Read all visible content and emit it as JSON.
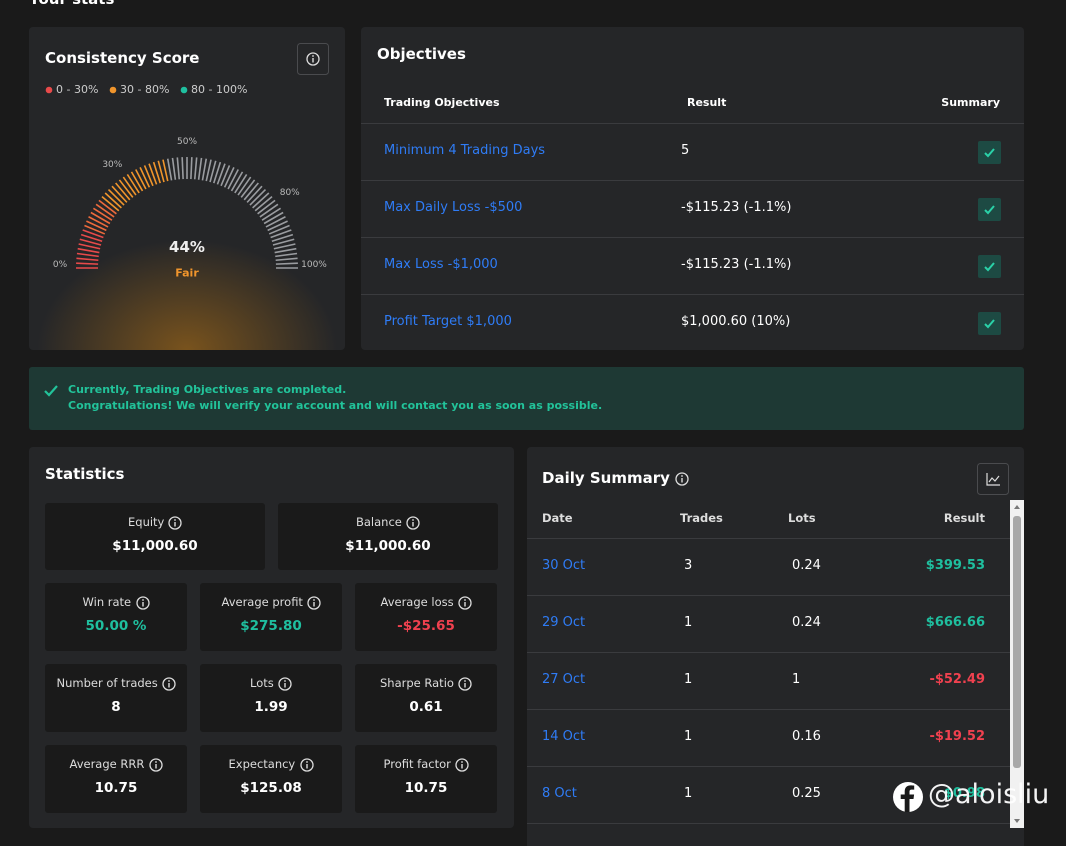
{
  "header": {
    "title": "Your stats"
  },
  "consistency": {
    "title": "Consistency Score",
    "legend": [
      {
        "label": "0 - 30%",
        "color": "#e84a4a"
      },
      {
        "label": "30 - 80%",
        "color": "#f0952c"
      },
      {
        "label": "80 - 100%",
        "color": "#1fbf9f"
      }
    ],
    "gauge_ticks": [
      {
        "value": 0,
        "label": "0%"
      },
      {
        "value": 30,
        "label": "30%"
      },
      {
        "value": 50,
        "label": "50%"
      },
      {
        "value": 80,
        "label": "80%"
      },
      {
        "value": 100,
        "label": "100%"
      }
    ],
    "score": {
      "value": 44,
      "label": "44%"
    },
    "rating": "Fair"
  },
  "objectives": {
    "title": "Objectives",
    "headers": [
      "Trading Objectives",
      "Result",
      "Summary"
    ],
    "rows": [
      [
        "Minimum 4 Trading Days",
        "5"
      ],
      [
        "Max Daily Loss -$500",
        "-$115.23 (-1.1%)"
      ],
      [
        "Max Loss -$1,000",
        "-$115.23 (-1.1%)"
      ],
      [
        "Profit Target $1,000",
        "$1,000.60 (10%)"
      ]
    ]
  },
  "banner": {
    "lines": [
      "Currently, Trading Objectives are completed.",
      "Congratulations! We will verify your account and will contact you as soon as possible."
    ]
  },
  "statistics": {
    "title": "Statistics",
    "items": [
      {
        "label": "Equity",
        "value": "$11,000.60",
        "color": "#ffffff"
      },
      {
        "label": "Balance",
        "value": "$11,000.60",
        "color": "#ffffff"
      },
      {
        "label": "Win rate",
        "value": "50.00 %",
        "color": "#1fbf9f"
      },
      {
        "label": "Average profit",
        "value": "$275.80",
        "color": "#1fbf9f"
      },
      {
        "label": "Average loss",
        "value": "-$25.65",
        "color": "#f0414f"
      },
      {
        "label": "Number of trades",
        "value": "8",
        "color": "#ffffff"
      },
      {
        "label": "Lots",
        "value": "1.99",
        "color": "#ffffff"
      },
      {
        "label": "Sharpe Ratio",
        "value": "0.61",
        "color": "#ffffff"
      },
      {
        "label": "Average RRR",
        "value": "10.75",
        "color": "#ffffff"
      },
      {
        "label": "Expectancy",
        "value": "$125.08",
        "color": "#ffffff"
      },
      {
        "label": "Profit factor",
        "value": "10.75",
        "color": "#ffffff"
      }
    ]
  },
  "daily_summary": {
    "title": "Daily Summary",
    "headers": [
      "Date",
      "Trades",
      "Lots",
      "Result"
    ],
    "rows": [
      {
        "date": "30 Oct",
        "trades": "3",
        "lots": "0.24",
        "result": "$399.53",
        "color": "#1fbf9f"
      },
      {
        "date": "29 Oct",
        "trades": "1",
        "lots": "0.24",
        "result": "$666.66",
        "color": "#1fbf9f"
      },
      {
        "date": "27 Oct",
        "trades": "1",
        "lots": "1",
        "result": "-$52.49",
        "color": "#f0414f"
      },
      {
        "date": "14 Oct",
        "trades": "1",
        "lots": "0.16",
        "result": "-$19.52",
        "color": "#f0414f"
      },
      {
        "date": "8 Oct",
        "trades": "1",
        "lots": "0.25",
        "result": "$0.98",
        "color": "#1fbf9f"
      }
    ]
  },
  "watermark": {
    "text": "@aloisliu"
  }
}
